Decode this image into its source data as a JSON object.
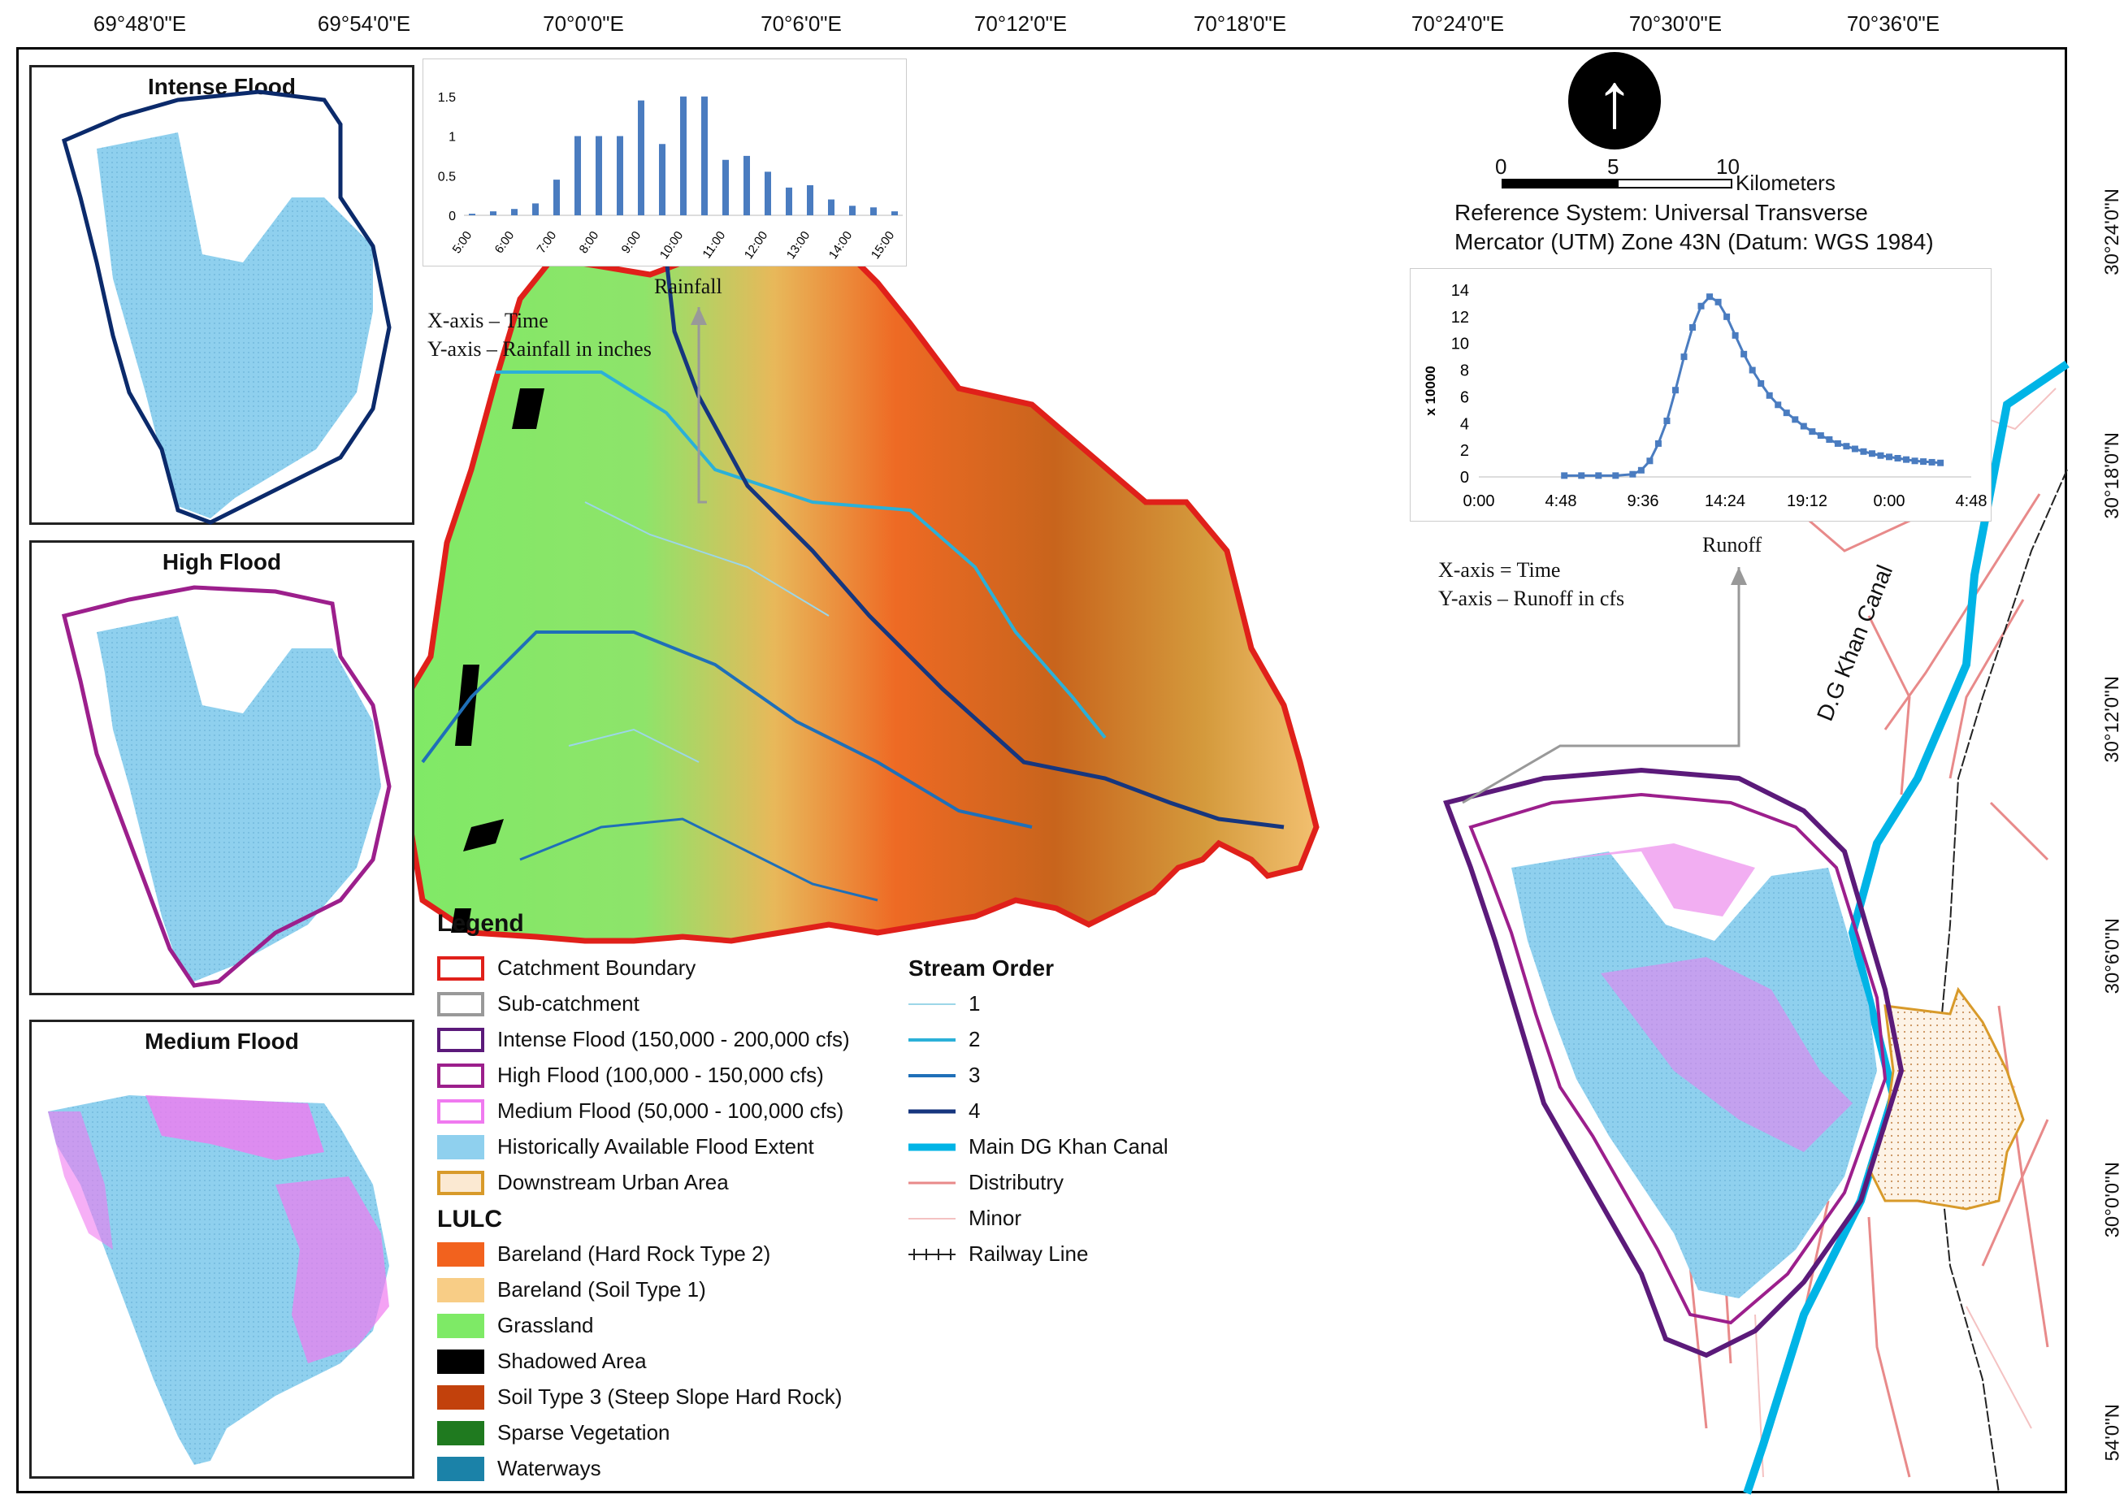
{
  "graticule": {
    "longitudes": [
      "69°48'0\"E",
      "69°54'0\"E",
      "70°0'0\"E",
      "70°6'0\"E",
      "70°12'0\"E",
      "70°18'0\"E",
      "70°24'0\"E",
      "70°30'0\"E",
      "70°36'0\"E"
    ],
    "latitudes": [
      "30°24'0\"N",
      "30°18'0\"N",
      "30°12'0\"N",
      "30°6'0\"N",
      "30°0'0\"N",
      "54'0\"N"
    ]
  },
  "insets": [
    {
      "title": "Intense Flood",
      "outline_color": "#0b2a6b"
    },
    {
      "title": "High Flood",
      "outline_color": "#9c1f8c"
    },
    {
      "title": "Medium Flood",
      "outline_color": "#f07af0"
    }
  ],
  "rainfall_chart": {
    "caption": "Rainfall",
    "axis_note_x": "X-axis – Time",
    "axis_note_y": "Y-axis – Rainfall  in inches",
    "chart_data": {
      "type": "bar",
      "categories": [
        "5:00",
        "6:00",
        "7:00",
        "8:00",
        "9:00",
        "10:00",
        "11:00",
        "12:00",
        "13:00",
        "14:00",
        "15:00"
      ],
      "x": [
        5.0,
        5.5,
        6.0,
        6.5,
        7.0,
        7.5,
        8.0,
        8.5,
        9.0,
        9.5,
        10.0,
        10.5,
        11.0,
        11.5,
        12.0,
        12.5,
        13.0,
        13.5,
        14.0,
        14.5,
        15.0
      ],
      "values": [
        0.02,
        0.05,
        0.08,
        0.15,
        0.45,
        1.0,
        1.0,
        1.0,
        1.45,
        0.9,
        1.5,
        1.5,
        0.7,
        0.75,
        0.55,
        0.35,
        0.38,
        0.2,
        0.12,
        0.1,
        0.05
      ],
      "yticks": [
        "0",
        "0.5",
        "1",
        "1.5"
      ],
      "ylim": [
        0,
        1.6
      ],
      "color": "#4a7cc0"
    }
  },
  "runoff_chart": {
    "caption": "Runoff",
    "axis_note_x": "X-axis = Time",
    "axis_note_y": "Y-axis – Runoff in cfs",
    "chart_data": {
      "type": "line",
      "ylabel": "x 10000",
      "xticks": [
        "0:00",
        "4:48",
        "9:36",
        "14:24",
        "19:12",
        "0:00",
        "4:48"
      ],
      "yticks": [
        "0",
        "2",
        "4",
        "6",
        "8",
        "10",
        "12",
        "14"
      ],
      "xlim_hours": [
        0,
        28.8
      ],
      "ylim": [
        0,
        14
      ],
      "x_hours": [
        5,
        6,
        7,
        8,
        9,
        9.5,
        10,
        10.5,
        11,
        11.5,
        12,
        12.5,
        13,
        13.5,
        14,
        14.5,
        15,
        15.5,
        16,
        16.5,
        17,
        17.5,
        18,
        18.5,
        19,
        19.5,
        20,
        20.5,
        21,
        21.5,
        22,
        22.5,
        23,
        23.5,
        24,
        24.5,
        25,
        25.5,
        26,
        26.5,
        27
      ],
      "values": [
        0.1,
        0.1,
        0.1,
        0.1,
        0.2,
        0.5,
        1.2,
        2.5,
        4.2,
        6.5,
        9.0,
        11.2,
        12.8,
        13.5,
        13.1,
        12.0,
        10.6,
        9.2,
        8.0,
        7.0,
        6.1,
        5.4,
        4.8,
        4.3,
        3.8,
        3.4,
        3.1,
        2.8,
        2.5,
        2.3,
        2.1,
        1.9,
        1.75,
        1.6,
        1.5,
        1.4,
        1.3,
        1.2,
        1.15,
        1.1,
        1.05
      ],
      "color": "#4a7cc0"
    }
  },
  "north_arrow": {
    "symbol": "↑"
  },
  "scale_bar": {
    "ticks": [
      "0",
      "5",
      "10"
    ],
    "unit": "Kilometers"
  },
  "reference_system": {
    "line1": "Reference System: Universal Transverse",
    "line2": "Mercator (UTM) Zone 43N (Datum: WGS 1984)"
  },
  "canal_label": "D.G Khan Canal",
  "legend": {
    "title": "Legend",
    "items": [
      {
        "label": "Catchment Boundary",
        "fill": "#ffffff",
        "border": "#e0201a"
      },
      {
        "label": "Sub-catchment",
        "fill": "#ffffff",
        "border": "#999999"
      },
      {
        "label": "Intense Flood (150,000 - 200,000 cfs)",
        "fill": "#ffffff",
        "border": "#5b1a7a"
      },
      {
        "label": "High Flood (100,000 - 150,000 cfs)",
        "fill": "#ffffff",
        "border": "#9c1f8c"
      },
      {
        "label": "Medium Flood (50,000 - 100,000 cfs)",
        "fill": "#ffffff",
        "border": "#f07af0"
      },
      {
        "label": "Historically Available Flood Extent",
        "fill": "#8fd0ee",
        "border": "#8fd0ee"
      },
      {
        "label": "Downstream Urban Area",
        "fill": "#fbe9d2",
        "border": "#d89a2a"
      }
    ],
    "lulc_title": "LULC",
    "lulc_items": [
      {
        "label": "Bareland (Hard Rock Type 2)",
        "color": "#f2621e"
      },
      {
        "label": "Bareland (Soil Type 1)",
        "color": "#f8cd86"
      },
      {
        "label": "Grassland",
        "color": "#7eea66"
      },
      {
        "label": "Shadowed Area",
        "color": "#000000"
      },
      {
        "label": "Soil Type 3 (Steep Slope Hard Rock)",
        "color": "#c2410c"
      },
      {
        "label": "Sparse Vegetation",
        "color": "#1f7a1f"
      },
      {
        "label": "Waterways",
        "color": "#1b82a8"
      }
    ],
    "stream_title": "Stream Order",
    "stream_items": [
      {
        "label": "1",
        "color": "#9cd6e8",
        "width": 2
      },
      {
        "label": "2",
        "color": "#2bb0d8",
        "width": 4
      },
      {
        "label": "3",
        "color": "#1f6fb8",
        "width": 4
      },
      {
        "label": "4",
        "color": "#16367e",
        "width": 5
      },
      {
        "label": "Main DG Khan Canal",
        "color": "#00b4e6",
        "width": 9
      },
      {
        "label": "Distributry",
        "color": "#e88a8a",
        "width": 3
      },
      {
        "label": "Minor",
        "color": "#f4c2c2",
        "width": 2
      },
      {
        "label": "Railway Line",
        "color": "#222222",
        "width": 2,
        "style": "railway"
      }
    ]
  }
}
